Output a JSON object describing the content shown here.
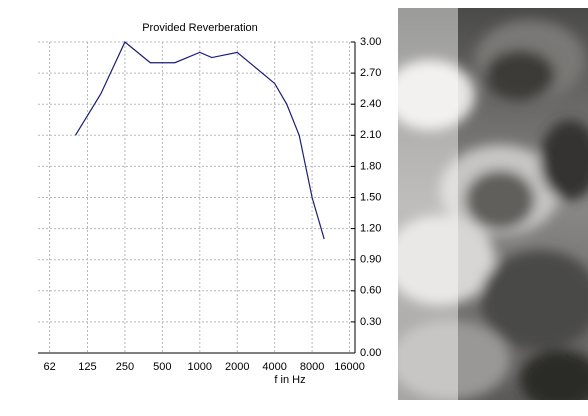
{
  "chart_data": {
    "type": "line",
    "title": "Provided Reverberation",
    "x_label": "f in Hz",
    "x": [
      100,
      160,
      250,
      400,
      630,
      1000,
      1250,
      2000,
      4000,
      5000,
      6300,
      8000,
      10000
    ],
    "series": [
      {
        "name": "Reverberation",
        "color": "#1c1c7a",
        "values": [
          2.1,
          2.5,
          3.0,
          2.8,
          2.8,
          2.9,
          2.85,
          2.9,
          2.6,
          2.4,
          2.1,
          1.5,
          1.1
        ]
      }
    ],
    "xscale": "log",
    "xlim": [
      50,
      17700
    ],
    "xticks": [
      62,
      125,
      250,
      500,
      1000,
      2000,
      4000,
      8000,
      16000
    ],
    "ylim": [
      0,
      3
    ],
    "yticks": [
      {
        "value": 0,
        "label": "0.00"
      },
      {
        "value": 0.3,
        "label": "0.30"
      },
      {
        "value": 0.6,
        "label": "0.60"
      },
      {
        "value": 0.9,
        "label": "0.90"
      },
      {
        "value": 1.2,
        "label": "1.20"
      },
      {
        "value": 1.5,
        "label": "1.50"
      },
      {
        "value": 1.8,
        "label": "1.80"
      },
      {
        "value": 2.1,
        "label": "2.10"
      },
      {
        "value": 2.4,
        "label": "2.40"
      },
      {
        "value": 2.7,
        "label": "2.70"
      },
      {
        "value": 3,
        "label": "3.00"
      }
    ],
    "grid": true
  }
}
